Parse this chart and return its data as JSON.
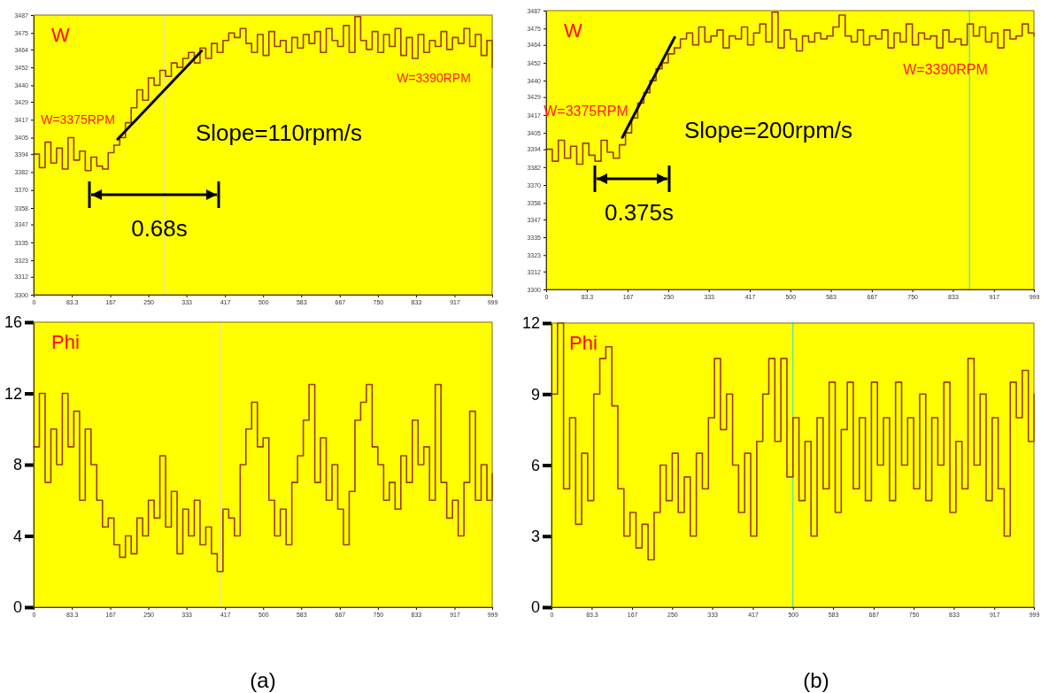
{
  "chart_data": [
    {
      "type": "step",
      "title": "W",
      "x": [
        0,
        12.5,
        25,
        37.5,
        50,
        62.5,
        75,
        87.5,
        100,
        112.5,
        125,
        137.5,
        150,
        162.5,
        175,
        187.5,
        200,
        212.5,
        225,
        237.5,
        250,
        262.5,
        275,
        287.5,
        300,
        312.5,
        325,
        337.5,
        350,
        362.5,
        375,
        387.5,
        400,
        412.5,
        425,
        437.5,
        450,
        462.5,
        475,
        487.5,
        500,
        512.5,
        525,
        537.5,
        550,
        562.5,
        575,
        587.5,
        600,
        612.5,
        625,
        637.5,
        650,
        662.5,
        675,
        687.5,
        700,
        712.5,
        725,
        737.5,
        750,
        762.5,
        775,
        787.5,
        800,
        812.5,
        825,
        837.5,
        850,
        862.5,
        875,
        887.5,
        900,
        912.5,
        925,
        937.5,
        950,
        962.5,
        975,
        987.5,
        999
      ],
      "series": [
        {
          "color": "#9c3a00",
          "values": [
            3394,
            3385,
            3402,
            3388,
            3398,
            3384,
            3405,
            3390,
            3396,
            3383,
            3392,
            3386,
            3384,
            3395,
            3400,
            3405,
            3415,
            3425,
            3437,
            3430,
            3445,
            3440,
            3450,
            3446,
            3455,
            3452,
            3458,
            3462,
            3455,
            3465,
            3458,
            3468,
            3462,
            3470,
            3475,
            3472,
            3478,
            3468,
            3462,
            3474,
            3460,
            3476,
            3466,
            3470,
            3462,
            3472,
            3465,
            3474,
            3468,
            3476,
            3462,
            3478,
            3470,
            3466,
            3480,
            3462,
            3486,
            3470,
            3464,
            3476,
            3462,
            3474,
            3466,
            3478,
            3460,
            3472,
            3458,
            3474,
            3462,
            3470,
            3466,
            3476,
            3464,
            3472,
            3468,
            3478,
            3466,
            3474,
            3460,
            3470,
            3452
          ]
        },
        {
          "type": "line",
          "color": "#000000",
          "x": [
            183,
            366
          ],
          "values": [
            3404,
            3463
          ]
        }
      ],
      "xlim": [
        0,
        999
      ],
      "xticks": [
        0,
        83.3,
        167,
        250,
        333,
        417,
        500,
        583,
        667,
        750,
        833,
        917,
        999
      ],
      "ylim": [
        3300,
        3487
      ],
      "yticks": [
        3300,
        3312,
        3323,
        3335,
        3347,
        3358,
        3370,
        3382,
        3394,
        3405,
        3417,
        3429,
        3440,
        3452,
        3464,
        3475,
        3487
      ],
      "ref_lines": [
        {
          "axis": "x",
          "value": 285,
          "color": "#e6e6a0"
        }
      ],
      "annotations": [
        "W=3375RPM",
        "W=3390RPM",
        "Slope=110rpm/s",
        "0.68s"
      ]
    },
    {
      "type": "step",
      "title": "W",
      "x": [
        0,
        12.5,
        25,
        37.5,
        50,
        62.5,
        75,
        87.5,
        100,
        112.5,
        125,
        137.5,
        150,
        162.5,
        175,
        187.5,
        200,
        212.5,
        225,
        237.5,
        250,
        262.5,
        275,
        287.5,
        300,
        312.5,
        325,
        337.5,
        350,
        362.5,
        375,
        387.5,
        400,
        412.5,
        425,
        437.5,
        450,
        462.5,
        475,
        487.5,
        500,
        512.5,
        525,
        537.5,
        550,
        562.5,
        575,
        587.5,
        600,
        612.5,
        625,
        637.5,
        650,
        662.5,
        675,
        687.5,
        700,
        712.5,
        725,
        737.5,
        750,
        762.5,
        775,
        787.5,
        800,
        812.5,
        825,
        837.5,
        850,
        862.5,
        875,
        887.5,
        900,
        912.5,
        925,
        937.5,
        950,
        962.5,
        975,
        987.5,
        999
      ],
      "series": [
        {
          "color": "#9c3a00",
          "values": [
            3394,
            3386,
            3400,
            3388,
            3396,
            3384,
            3398,
            3390,
            3386,
            3400,
            3392,
            3388,
            3397,
            3405,
            3415,
            3425,
            3432,
            3440,
            3448,
            3452,
            3458,
            3462,
            3468,
            3472,
            3464,
            3476,
            3466,
            3470,
            3474,
            3462,
            3470,
            3468,
            3476,
            3464,
            3472,
            3478,
            3466,
            3486,
            3462,
            3474,
            3468,
            3460,
            3470,
            3466,
            3472,
            3468,
            3470,
            3476,
            3484,
            3470,
            3466,
            3474,
            3464,
            3470,
            3468,
            3474,
            3462,
            3472,
            3466,
            3478,
            3464,
            3472,
            3468,
            3470,
            3462,
            3474,
            3466,
            3468,
            3464,
            3478,
            3470,
            3476,
            3466,
            3472,
            3462,
            3474,
            3468,
            3470,
            3478,
            3472,
            3470
          ]
        },
        {
          "type": "line",
          "color": "#000000",
          "x": [
            156,
            263
          ],
          "values": [
            3402,
            3469
          ]
        }
      ],
      "xlim": [
        0,
        999
      ],
      "xticks": [
        0,
        83.3,
        167,
        250,
        333,
        417,
        500,
        583,
        667,
        750,
        833,
        917,
        999
      ],
      "ylim": [
        3300,
        3487
      ],
      "yticks": [
        3300,
        3312,
        3323,
        3335,
        3347,
        3358,
        3370,
        3382,
        3394,
        3405,
        3417,
        3429,
        3440,
        3452,
        3464,
        3475,
        3487
      ],
      "ref_lines": [
        {
          "axis": "x",
          "value": 867,
          "color": "#40e0d0"
        }
      ],
      "annotations": [
        "W=3375RPM",
        "W=3390RPM",
        "Slope=200rpm/s",
        "0.375s"
      ]
    },
    {
      "type": "step",
      "title": "Phi",
      "x": [
        0,
        12.5,
        25,
        37.5,
        50,
        62.5,
        75,
        87.5,
        100,
        112.5,
        125,
        137.5,
        150,
        162.5,
        175,
        187.5,
        200,
        212.5,
        225,
        237.5,
        250,
        262.5,
        275,
        287.5,
        300,
        312.5,
        325,
        337.5,
        350,
        362.5,
        375,
        387.5,
        400,
        412.5,
        425,
        437.5,
        450,
        462.5,
        475,
        487.5,
        500,
        512.5,
        525,
        537.5,
        550,
        562.5,
        575,
        587.5,
        600,
        612.5,
        625,
        637.5,
        650,
        662.5,
        675,
        687.5,
        700,
        712.5,
        725,
        737.5,
        750,
        762.5,
        775,
        787.5,
        800,
        812.5,
        825,
        837.5,
        850,
        862.5,
        875,
        887.5,
        900,
        912.5,
        925,
        937.5,
        950,
        962.5,
        975,
        987.5,
        999
      ],
      "series": [
        {
          "color": "#9c3a00",
          "values": [
            9,
            12,
            7,
            10,
            8,
            12,
            9,
            11,
            6,
            10,
            8,
            6,
            4.5,
            5,
            3.5,
            2.8,
            4,
            3,
            5,
            4,
            6,
            5,
            8.5,
            4.5,
            6.5,
            3,
            5.5,
            4,
            6,
            3.5,
            4.5,
            3,
            2,
            5.5,
            5,
            4,
            8,
            10,
            11.5,
            9,
            9.5,
            6,
            4,
            5.5,
            3.5,
            7,
            8.5,
            10.5,
            12.5,
            7,
            9.5,
            6,
            8,
            5.5,
            3.5,
            6.5,
            10.5,
            11.5,
            12.5,
            9,
            8,
            6,
            7,
            5.5,
            8.5,
            7,
            10.5,
            8,
            9,
            6,
            12.5,
            7,
            5,
            6,
            4,
            7,
            11,
            6,
            8,
            6,
            7.5
          ]
        }
      ],
      "xlim": [
        0,
        999
      ],
      "xticks": [
        0,
        83.3,
        167,
        250,
        333,
        417,
        500,
        583,
        667,
        750,
        833,
        917,
        999
      ],
      "ylim": [
        0,
        16
      ],
      "yticks": [
        0,
        4,
        8,
        12,
        16
      ],
      "ref_lines": [
        {
          "axis": "x",
          "value": 407,
          "color": "#e6e6a0"
        }
      ],
      "annotations": [
        "(a)"
      ]
    },
    {
      "type": "step",
      "title": "Phi",
      "x": [
        0,
        12.5,
        25,
        37.5,
        50,
        62.5,
        75,
        87.5,
        100,
        112.5,
        125,
        137.5,
        150,
        162.5,
        175,
        187.5,
        200,
        212.5,
        225,
        237.5,
        250,
        262.5,
        275,
        287.5,
        300,
        312.5,
        325,
        337.5,
        350,
        362.5,
        375,
        387.5,
        400,
        412.5,
        425,
        437.5,
        450,
        462.5,
        475,
        487.5,
        500,
        512.5,
        525,
        537.5,
        550,
        562.5,
        575,
        587.5,
        600,
        612.5,
        625,
        637.5,
        650,
        662.5,
        675,
        687.5,
        700,
        712.5,
        725,
        737.5,
        750,
        762.5,
        775,
        787.5,
        800,
        812.5,
        825,
        837.5,
        850,
        862.5,
        875,
        887.5,
        900,
        912.5,
        925,
        937.5,
        950,
        962.5,
        975,
        987.5,
        999
      ],
      "series": [
        {
          "color": "#9c3a00",
          "values": [
            9,
            12,
            5,
            8,
            3.5,
            6.5,
            4.5,
            9,
            10.5,
            11,
            8.5,
            5,
            3,
            4,
            2.5,
            3.5,
            2,
            4,
            6,
            4.5,
            6.5,
            4,
            5.5,
            3,
            6.5,
            5,
            8,
            10.5,
            7.5,
            9,
            6,
            4,
            6.5,
            3,
            7,
            9,
            10.5,
            7,
            10.5,
            5.5,
            8,
            4.5,
            7,
            3,
            8,
            5,
            9.5,
            4,
            7.5,
            9.5,
            5,
            8,
            4.5,
            9.5,
            6,
            8,
            4.5,
            9.5,
            6,
            8,
            5,
            9,
            4.5,
            8,
            6,
            9.5,
            4,
            7,
            5,
            10.5,
            6,
            9,
            4.5,
            8,
            5,
            3,
            9.5,
            8,
            10,
            7,
            9
          ]
        }
      ],
      "xlim": [
        0,
        999
      ],
      "xticks": [
        0,
        83.3,
        167,
        250,
        333,
        417,
        500,
        583,
        667,
        750,
        833,
        917,
        999
      ],
      "ylim": [
        0,
        12
      ],
      "yticks": [
        0,
        3,
        6,
        9,
        12
      ],
      "ref_lines": [
        {
          "axis": "x",
          "value": 500,
          "color": "#40e0d0"
        }
      ],
      "annotations": [
        "(b)"
      ]
    }
  ]
}
